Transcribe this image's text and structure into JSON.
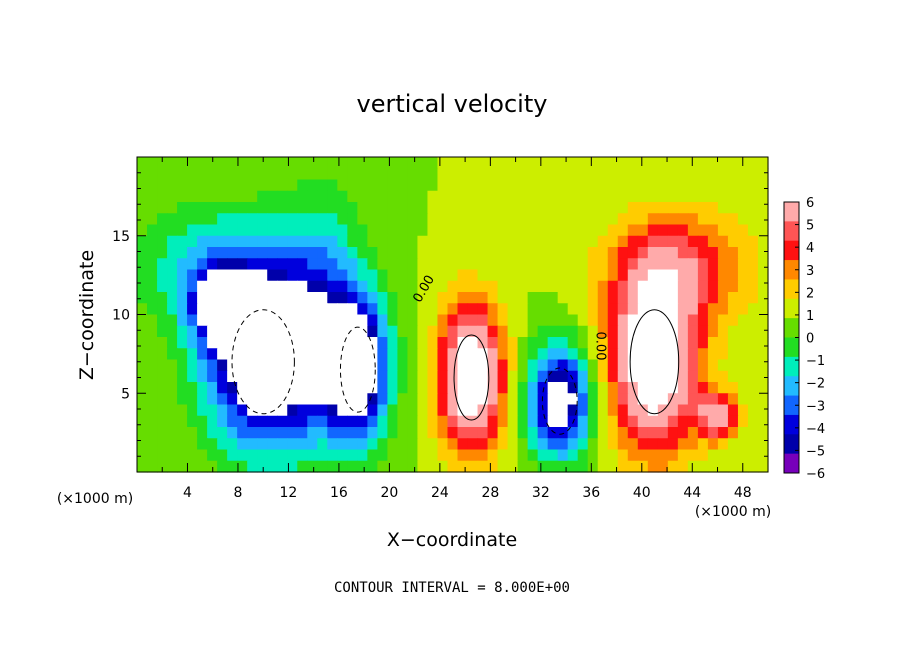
{
  "chart_data": {
    "type": "heatmap",
    "title": "vertical velocity",
    "xlabel": "X−coordinate",
    "ylabel": "Z−coordinate",
    "x_unit": "(×1000 m)",
    "x_unit_right": "(×1000 m)",
    "xlim": [
      0,
      50
    ],
    "ylim": [
      0,
      20
    ],
    "x_ticks": [
      4,
      8,
      12,
      16,
      20,
      24,
      28,
      32,
      36,
      40,
      44,
      48
    ],
    "y_ticks": [
      5,
      10,
      15
    ],
    "footer": "CONTOUR INTERVAL = 8.000E+00",
    "contour_labels": [
      {
        "text": "0.00",
        "x": 23.0,
        "y": 11.5
      },
      {
        "text": "0.00",
        "x": 36.4,
        "y": 8.0
      }
    ],
    "colorbar": {
      "levels": [
        "6",
        "5",
        "4",
        "3",
        "2",
        "1",
        "0",
        "−1",
        "−2",
        "−3",
        "−4",
        "−5",
        "−6"
      ],
      "colors": [
        "#ffaaaa",
        "#ff5555",
        "#ff1111",
        "#ff8800",
        "#ffcc00",
        "#ccee00",
        "#66dd00",
        "#22dd22",
        "#00eebb",
        "#22bbff",
        "#1166ff",
        "#0000dd",
        "#0000aa",
        "#7700bb"
      ]
    },
    "features": [
      {
        "sign": "downdraft",
        "x": 10.0,
        "y": 7.0,
        "rx": 4.5,
        "ry": 5.5,
        "amp": -9
      },
      {
        "sign": "downdraft",
        "x": 7.0,
        "y": 10.5,
        "rx": 2.5,
        "ry": 2.5,
        "amp": -6
      },
      {
        "sign": "downdraft",
        "x": 17.5,
        "y": 6.5,
        "rx": 2.5,
        "ry": 4.5,
        "amp": -8
      },
      {
        "sign": "downdraft",
        "x": 14.5,
        "y": 10.0,
        "rx": 3.5,
        "ry": 7.0,
        "amp": -4
      },
      {
        "sign": "downdraft",
        "x": 6.0,
        "y": 13.0,
        "rx": 6.0,
        "ry": 4.0,
        "amp": -3
      },
      {
        "sign": "updraft",
        "x": 26.5,
        "y": 6.0,
        "rx": 2.5,
        "ry": 4.5,
        "amp": 9
      },
      {
        "sign": "downdraft",
        "x": 33.5,
        "y": 4.5,
        "rx": 2.5,
        "ry": 3.5,
        "amp": -8
      },
      {
        "sign": "updraft",
        "x": 41.0,
        "y": 7.0,
        "rx": 3.5,
        "ry": 5.5,
        "amp": 9
      },
      {
        "sign": "updraft",
        "x": 43.0,
        "y": 13.0,
        "rx": 5.5,
        "ry": 3.5,
        "amp": 4
      },
      {
        "sign": "updraft",
        "x": 46.0,
        "y": 3.5,
        "rx": 1.5,
        "ry": 1.5,
        "amp": 6
      }
    ]
  }
}
